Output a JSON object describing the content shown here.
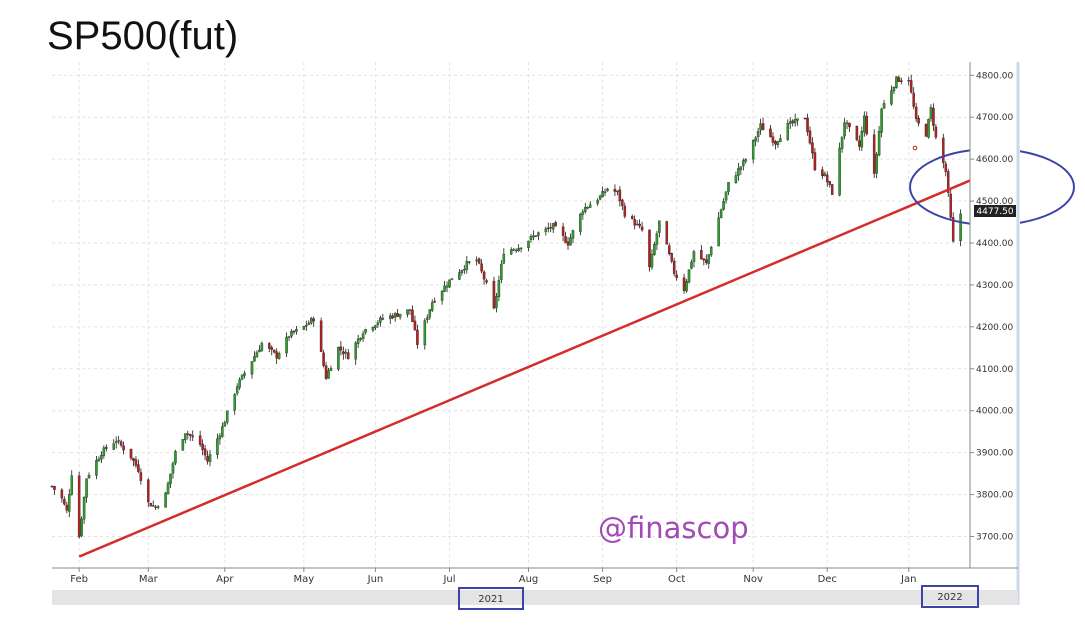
{
  "chart_data": {
    "type": "candlestick",
    "title": "SP500(fut)",
    "watermark": "@finascop",
    "y_ticks": [
      "4800.00",
      "4700.00",
      "4600.00",
      "4500.00",
      "4400.00",
      "4300.00",
      "4200.00",
      "4100.00",
      "4000.00",
      "3900.00",
      "3800.00",
      "3700.00"
    ],
    "ylim": [
      3650,
      4830
    ],
    "months": [
      "Feb",
      "Mar",
      "Apr",
      "May",
      "Jun",
      "Jul",
      "Aug",
      "Sep",
      "Oct",
      "Nov",
      "Dec",
      "Jan"
    ],
    "years": [
      "2021",
      "2022"
    ],
    "last_price": "4477.50",
    "grid": true,
    "colors": {
      "up": "#2e9b2e",
      "down": "#b32222",
      "trendline": "#d42b2b",
      "annotation": "#3d44a8"
    },
    "price_path": [
      [
        "2021-01-21",
        3820
      ],
      [
        "2021-01-25",
        3790
      ],
      [
        "2021-01-27",
        3760
      ],
      [
        "2021-01-29",
        3850
      ],
      [
        "2021-02-01",
        3700
      ],
      [
        "2021-02-04",
        3840
      ],
      [
        "2021-02-10",
        3900
      ],
      [
        "2021-02-16",
        3930
      ],
      [
        "2021-02-22",
        3890
      ],
      [
        "2021-02-25",
        3860
      ],
      [
        "2021-03-01",
        3780
      ],
      [
        "2021-03-04",
        3770
      ],
      [
        "2021-03-08",
        3800
      ],
      [
        "2021-03-12",
        3900
      ],
      [
        "2021-03-16",
        3950
      ],
      [
        "2021-03-22",
        3920
      ],
      [
        "2021-03-25",
        3880
      ],
      [
        "2021-03-31",
        3960
      ],
      [
        "2021-04-06",
        4060
      ],
      [
        "2021-04-12",
        4120
      ],
      [
        "2021-04-16",
        4160
      ],
      [
        "2021-04-22",
        4130
      ],
      [
        "2021-04-27",
        4180
      ],
      [
        "2021-05-03",
        4200
      ],
      [
        "2021-05-07",
        4220
      ],
      [
        "2021-05-12",
        4080
      ],
      [
        "2021-05-17",
        4150
      ],
      [
        "2021-05-21",
        4130
      ],
      [
        "2021-05-27",
        4190
      ],
      [
        "2021-06-04",
        4220
      ],
      [
        "2021-06-10",
        4230
      ],
      [
        "2021-06-15",
        4240
      ],
      [
        "2021-06-18",
        4160
      ],
      [
        "2021-06-24",
        4260
      ],
      [
        "2021-07-01",
        4310
      ],
      [
        "2021-07-08",
        4350
      ],
      [
        "2021-07-12",
        4360
      ],
      [
        "2021-07-16",
        4300
      ],
      [
        "2021-07-19",
        4240
      ],
      [
        "2021-07-23",
        4380
      ],
      [
        "2021-07-29",
        4390
      ],
      [
        "2021-08-05",
        4420
      ],
      [
        "2021-08-12",
        4440
      ],
      [
        "2021-08-18",
        4400
      ],
      [
        "2021-08-24",
        4480
      ],
      [
        "2021-08-31",
        4510
      ],
      [
        "2021-09-03",
        4530
      ],
      [
        "2021-09-07",
        4520
      ],
      [
        "2021-09-10",
        4470
      ],
      [
        "2021-09-17",
        4430
      ],
      [
        "2021-09-20",
        4340
      ],
      [
        "2021-09-24",
        4450
      ],
      [
        "2021-09-30",
        4330
      ],
      [
        "2021-10-04",
        4290
      ],
      [
        "2021-10-08",
        4380
      ],
      [
        "2021-10-13",
        4350
      ],
      [
        "2021-10-18",
        4460
      ],
      [
        "2021-10-22",
        4540
      ],
      [
        "2021-10-29",
        4600
      ],
      [
        "2021-11-04",
        4680
      ],
      [
        "2021-11-10",
        4640
      ],
      [
        "2021-11-15",
        4680
      ],
      [
        "2021-11-22",
        4700
      ],
      [
        "2021-11-26",
        4580
      ],
      [
        "2021-11-30",
        4560
      ],
      [
        "2021-12-03",
        4520
      ],
      [
        "2021-12-08",
        4690
      ],
      [
        "2021-12-14",
        4630
      ],
      [
        "2021-12-16",
        4700
      ],
      [
        "2021-12-20",
        4560
      ],
      [
        "2021-12-23",
        4720
      ],
      [
        "2021-12-29",
        4790
      ],
      [
        "2022-01-03",
        4790
      ],
      [
        "2022-01-06",
        4690
      ],
      [
        "2022-01-10",
        4660
      ],
      [
        "2022-01-12",
        4720
      ],
      [
        "2022-01-14",
        4650
      ],
      [
        "2022-01-18",
        4570
      ],
      [
        "2022-01-21",
        4400
      ],
      [
        "2022-01-24",
        4470
      ]
    ],
    "trendline": [
      [
        "2021-02-01",
        3652
      ],
      [
        "2022-01-27",
        4553
      ]
    ]
  }
}
